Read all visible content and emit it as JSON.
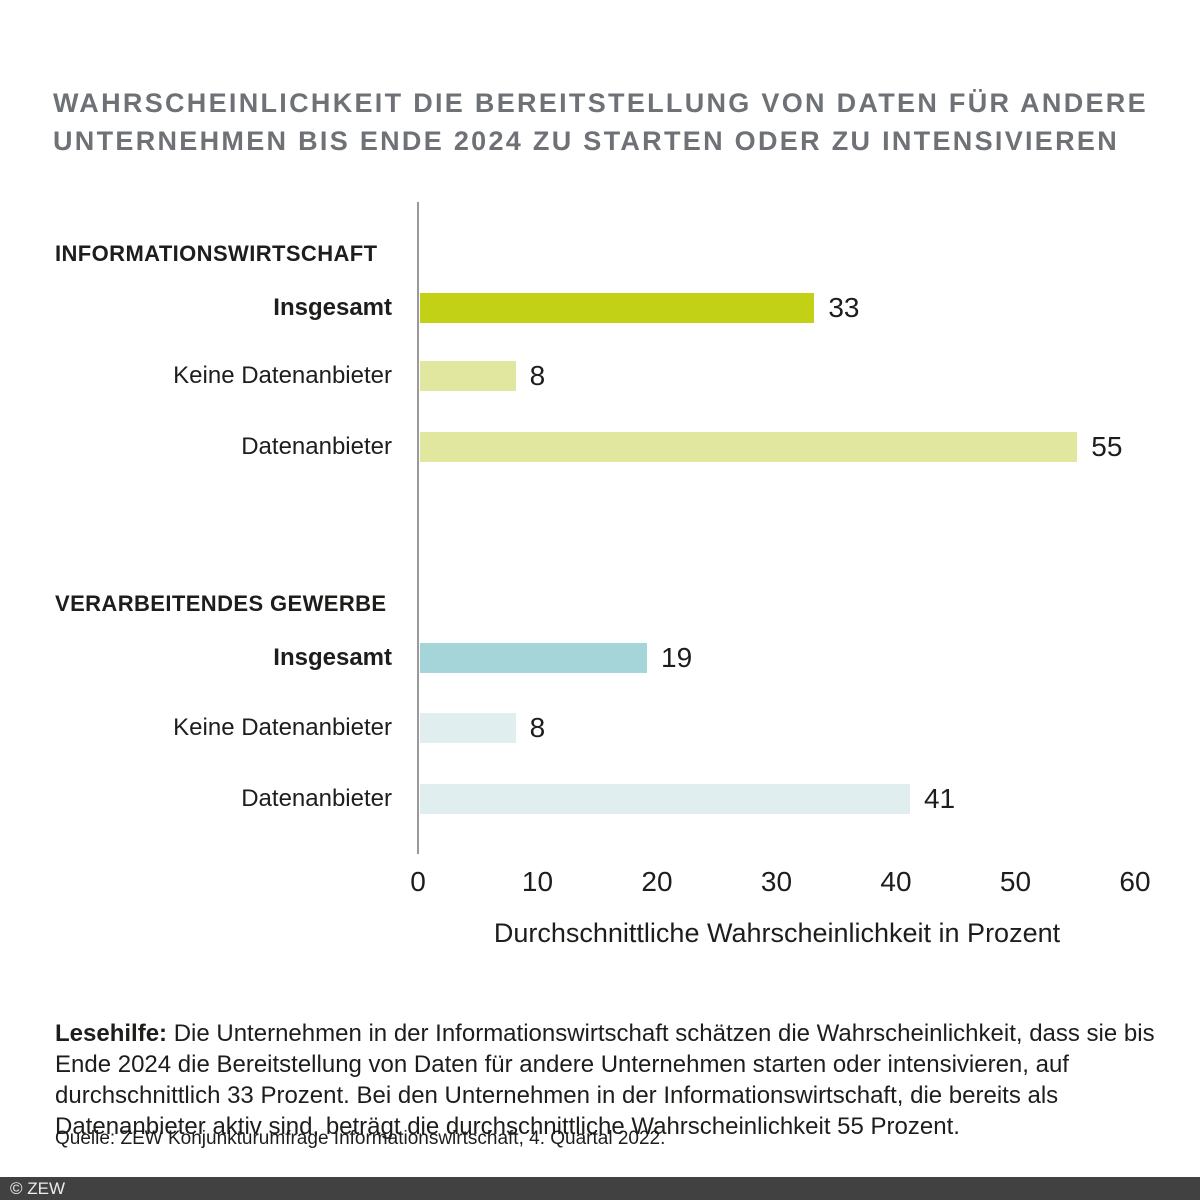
{
  "title": {
    "lines": [
      "WAHRSCHEINLICHKEIT DIE BEREITSTELLUNG VON DATEN FÜR ANDERE",
      "UNTERNEHMEN BIS ENDE 2024 ZU STARTEN ODER ZU INTENSIVIEREN"
    ]
  },
  "chart_data": {
    "type": "bar",
    "orientation": "horizontal",
    "xlabel": "Durchschnittliche Wahrscheinlichkeit in Prozent",
    "xlim": [
      0,
      60
    ],
    "x_ticks": [
      0,
      10,
      20,
      30,
      40,
      50,
      60
    ],
    "grid": false,
    "groups": [
      {
        "name": "INFORMATIONSWIRTSCHAFT",
        "bars": [
          {
            "label": "Insgesamt",
            "value": 33,
            "color": "#c2d016",
            "emphasis": true
          },
          {
            "label": "Keine Datenanbieter",
            "value": 8,
            "color": "#e2e79f",
            "emphasis": false
          },
          {
            "label": "Datenanbieter",
            "value": 55,
            "color": "#e2e79f",
            "emphasis": false
          }
        ]
      },
      {
        "name": "VERARBEITENDES GEWERBE",
        "bars": [
          {
            "label": "Insgesamt",
            "value": 19,
            "color": "#a6d5d9",
            "emphasis": true
          },
          {
            "label": "Keine Datenanbieter",
            "value": 8,
            "color": "#e0eeef",
            "emphasis": false
          },
          {
            "label": "Datenanbieter",
            "value": 41,
            "color": "#e0eeef",
            "emphasis": false
          }
        ]
      }
    ]
  },
  "reading_aid": {
    "label": "Lesehilfe:",
    "text": " Die Unternehmen in der Informationswirtschaft schätzen die Wahrscheinlichkeit, dass sie bis Ende 2024 die Bereitstellung von Daten für andere Unternehmen starten oder intensivieren, auf durchschnittlich 33 Prozent. Bei den Unternehmen in der Informationswirtschaft, die bereits als Datenanbieter aktiv sind, beträgt die durchschnittliche Wahrscheinlichkeit 55 Prozent."
  },
  "source": "Quelle: ZEW Konjunkturumfrage Informationswirtschaft, 4. Quartal 2022.",
  "footer": {
    "copyright": "© ZEW"
  },
  "colors": {
    "title": "#6e7277",
    "text": "#1d1d1b",
    "axis": "#9a9a9a",
    "footer_bg": "#414141",
    "footer_text": "#ececec"
  }
}
